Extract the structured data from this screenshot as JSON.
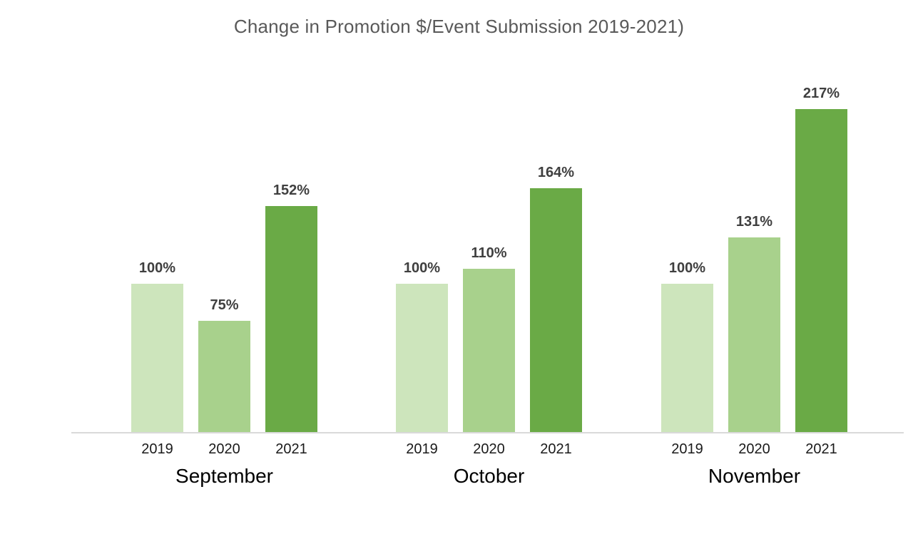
{
  "chart_data": {
    "type": "bar",
    "title": "Change in Promotion $/Event Submission 2019-2021)",
    "categories": [
      "September",
      "October",
      "November"
    ],
    "series": [
      {
        "name": "2019",
        "color": "#cde5bc",
        "values": [
          100,
          100,
          100
        ]
      },
      {
        "name": "2020",
        "color": "#a8d18c",
        "values": [
          75,
          110,
          131
        ]
      },
      {
        "name": "2021",
        "color": "#6aaa46",
        "values": [
          152,
          164,
          217
        ]
      }
    ],
    "value_suffix": "%",
    "xlabel": "",
    "ylabel": "",
    "ylim": [
      0,
      234
    ],
    "grid": false,
    "legend": false,
    "data_labels_shown": true,
    "colors": {
      "title": "#595959",
      "data_label": "#3f3f3f",
      "tick_label": "#1a1a1a",
      "axis_line": "#d9d9d9",
      "background": "#ffffff"
    }
  }
}
